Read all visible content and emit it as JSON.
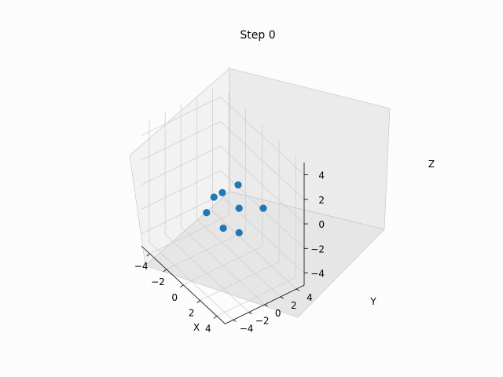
{
  "chart_data": {
    "type": "scatter",
    "title": "Step 0",
    "xlabel": "X",
    "ylabel": "Y",
    "zlabel": "Z",
    "xlim": [
      -5,
      5
    ],
    "ylim": [
      -5,
      5
    ],
    "zlim": [
      -5,
      5
    ],
    "x_ticks": [
      "−4",
      "−2",
      "0",
      "2",
      "4"
    ],
    "y_ticks": [
      "−4",
      "−2",
      "0",
      "2",
      "4"
    ],
    "z_ticks": [
      "−4",
      "−2",
      "0",
      "2",
      "4"
    ],
    "grid": true,
    "series": [
      {
        "color": "#1f77b4",
        "points": [
          {
            "x": -1,
            "y": 3,
            "z": 0
          },
          {
            "x": 2,
            "y": 3,
            "z": 0
          },
          {
            "x": -1,
            "y": 1,
            "z": 0
          },
          {
            "x": 1,
            "y": 1,
            "z": 0
          },
          {
            "x": -2,
            "y": 1,
            "z": -1
          },
          {
            "x": 1,
            "y": 1,
            "z": -2
          },
          {
            "x": -1,
            "y": -1,
            "z": -1
          },
          {
            "x": 1,
            "y": -1,
            "z": -1
          }
        ]
      }
    ]
  }
}
